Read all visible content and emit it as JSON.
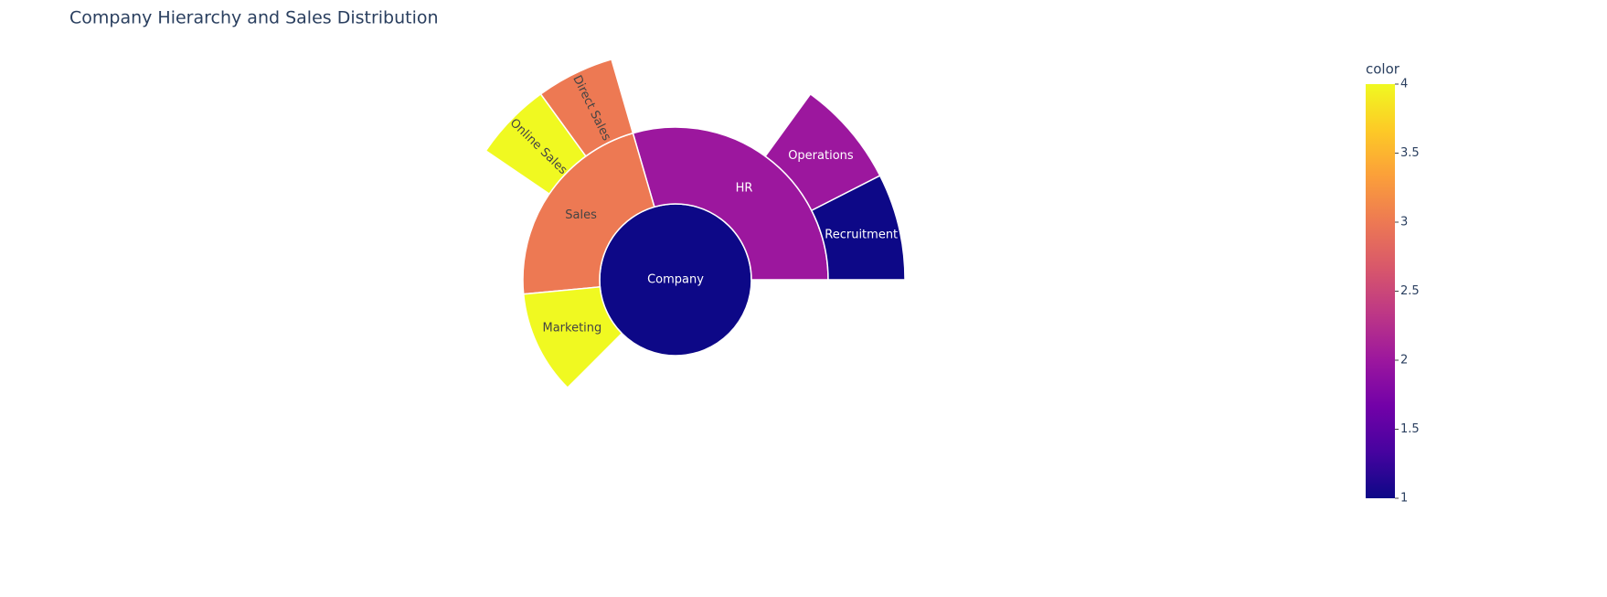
{
  "chart_data": {
    "type": "sunburst",
    "title": "Company Hierarchy and Sales Distribution",
    "labels": [
      "Company",
      "HR",
      "Sales",
      "Marketing",
      "Recruitment",
      "Operations",
      "Direct Sales",
      "Online Sales"
    ],
    "parents": [
      null,
      "Company",
      "Company",
      "Company",
      "HR",
      "HR",
      "Sales",
      "Sales"
    ],
    "values": [
      100,
      29.5,
      22,
      11,
      7.5,
      7.5,
      5.5,
      5.5
    ],
    "color_values": [
      1,
      2,
      3,
      4,
      1,
      2,
      3,
      4
    ],
    "colorbar_title": "color",
    "clim": [
      1,
      4
    ],
    "cticks": [
      1,
      1.5,
      2,
      2.5,
      3,
      3.5,
      4
    ],
    "colorscale": [
      "#0d0887",
      "#46039f",
      "#7201a8",
      "#9c179e",
      "#bd3786",
      "#d8576b",
      "#ed7953",
      "#fb9f3a",
      "#fdca26",
      "#f0f921"
    ]
  }
}
